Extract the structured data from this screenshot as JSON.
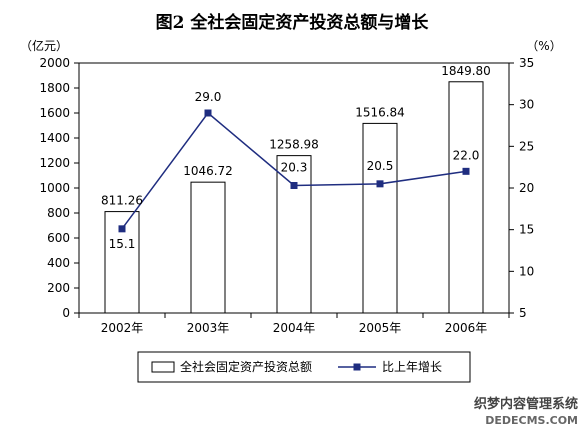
{
  "chart_data": {
    "type": "bar",
    "title": "图2 全社会固定资产投资总额与增长",
    "left_unit": "（亿元）",
    "right_unit": "（%）",
    "categories": [
      "2002年",
      "2003年",
      "2004年",
      "2005年",
      "2006年"
    ],
    "ylim": [
      0,
      2000
    ],
    "yticks": [
      0,
      200,
      400,
      600,
      800,
      1000,
      1200,
      1400,
      1600,
      1800,
      2000
    ],
    "y2lim": [
      5,
      35
    ],
    "y2ticks": [
      5,
      10,
      15,
      20,
      25,
      30,
      35
    ],
    "series": [
      {
        "name": "全社会固定资产投资总额",
        "type": "bar",
        "axis": "left",
        "values": [
          811.26,
          1046.72,
          1258.98,
          1516.84,
          1849.8
        ],
        "labels": [
          "811.26",
          "1046.72",
          "1258.98",
          "1516.84",
          "1849.80"
        ]
      },
      {
        "name": "比上年增长",
        "type": "line",
        "axis": "right",
        "values": [
          15.1,
          29.0,
          20.3,
          20.5,
          22.0
        ],
        "labels": [
          "15.1",
          "29.0",
          "20.3",
          "20.5",
          "22.0"
        ]
      }
    ],
    "legend_position": "bottom",
    "grid": false,
    "colors": {
      "bar_fill": "#ffffff",
      "bar_stroke": "#000000",
      "line": "#1f2d80",
      "marker": "#1f2d80"
    }
  },
  "watermark": {
    "line1": "织梦内容管理系统",
    "line2": "DEDECMS.COM"
  }
}
